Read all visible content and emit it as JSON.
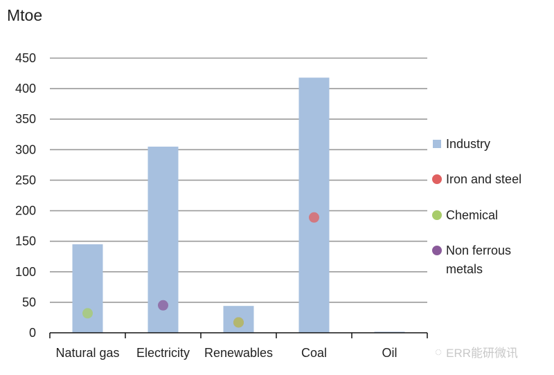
{
  "chart_data": {
    "type": "bar",
    "title": "",
    "ylabel": "Mtoe",
    "xlabel": "",
    "ylim": [
      0,
      450
    ],
    "yticks": [
      0,
      50,
      100,
      150,
      200,
      250,
      300,
      350,
      400,
      450
    ],
    "grid": true,
    "legend_position": "right",
    "categories": [
      "Natural gas",
      "Electricity",
      "Renewables",
      "Coal",
      "Oil"
    ],
    "series": [
      {
        "name": "Industry",
        "kind": "bar",
        "color": "#a7c0df",
        "values": [
          145,
          305,
          44,
          418,
          1
        ]
      },
      {
        "name": "Iron and steel",
        "kind": "point",
        "color": "#e06060",
        "values": [
          null,
          null,
          17,
          189,
          null
        ]
      },
      {
        "name": "Chemical",
        "kind": "point",
        "color": "#a8cc6a",
        "values": [
          32,
          null,
          17,
          null,
          null
        ]
      },
      {
        "name": "Non ferrous metals",
        "kind": "point",
        "color": "#8a5a9a",
        "values": [
          null,
          45,
          null,
          null,
          null
        ]
      }
    ]
  },
  "watermark": "ERR能研微讯"
}
